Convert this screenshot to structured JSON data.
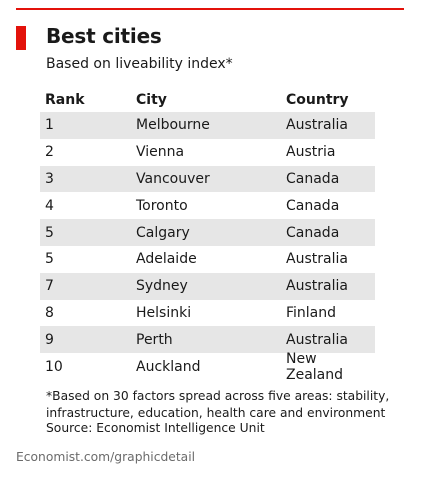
{
  "title": "Best cities",
  "subtitle": "Based on liveability index*",
  "headers": {
    "rank": "Rank",
    "city": "City",
    "country": "Country"
  },
  "chart_data": {
    "type": "table",
    "title": "Best cities",
    "subtitle": "Based on liveability index*",
    "columns": [
      "Rank",
      "City",
      "Country"
    ],
    "rows": [
      {
        "rank": "1",
        "city": "Melbourne",
        "country": "Australia"
      },
      {
        "rank": "2",
        "city": "Vienna",
        "country": "Austria"
      },
      {
        "rank": "3",
        "city": "Vancouver",
        "country": "Canada"
      },
      {
        "rank": "4",
        "city": "Toronto",
        "country": "Canada"
      },
      {
        "rank": "5",
        "city": "Calgary",
        "country": "Canada"
      },
      {
        "rank": "5",
        "city": "Adelaide",
        "country": "Australia"
      },
      {
        "rank": "7",
        "city": "Sydney",
        "country": "Australia"
      },
      {
        "rank": "8",
        "city": "Helsinki",
        "country": "Finland"
      },
      {
        "rank": "9",
        "city": "Perth",
        "country": "Australia"
      },
      {
        "rank": "10",
        "city": "Auckland",
        "country": "New Zealand"
      }
    ]
  },
  "footnote_line1": "*Based on 30 factors spread across five areas: stability,",
  "footnote_line2": "infrastructure, education, health care and environment",
  "source": "Source: Economist Intelligence Unit",
  "branding": "Economist.com/graphicdetail",
  "colors": {
    "accent": "#e3120b",
    "row_shade": "#e6e6e6"
  }
}
